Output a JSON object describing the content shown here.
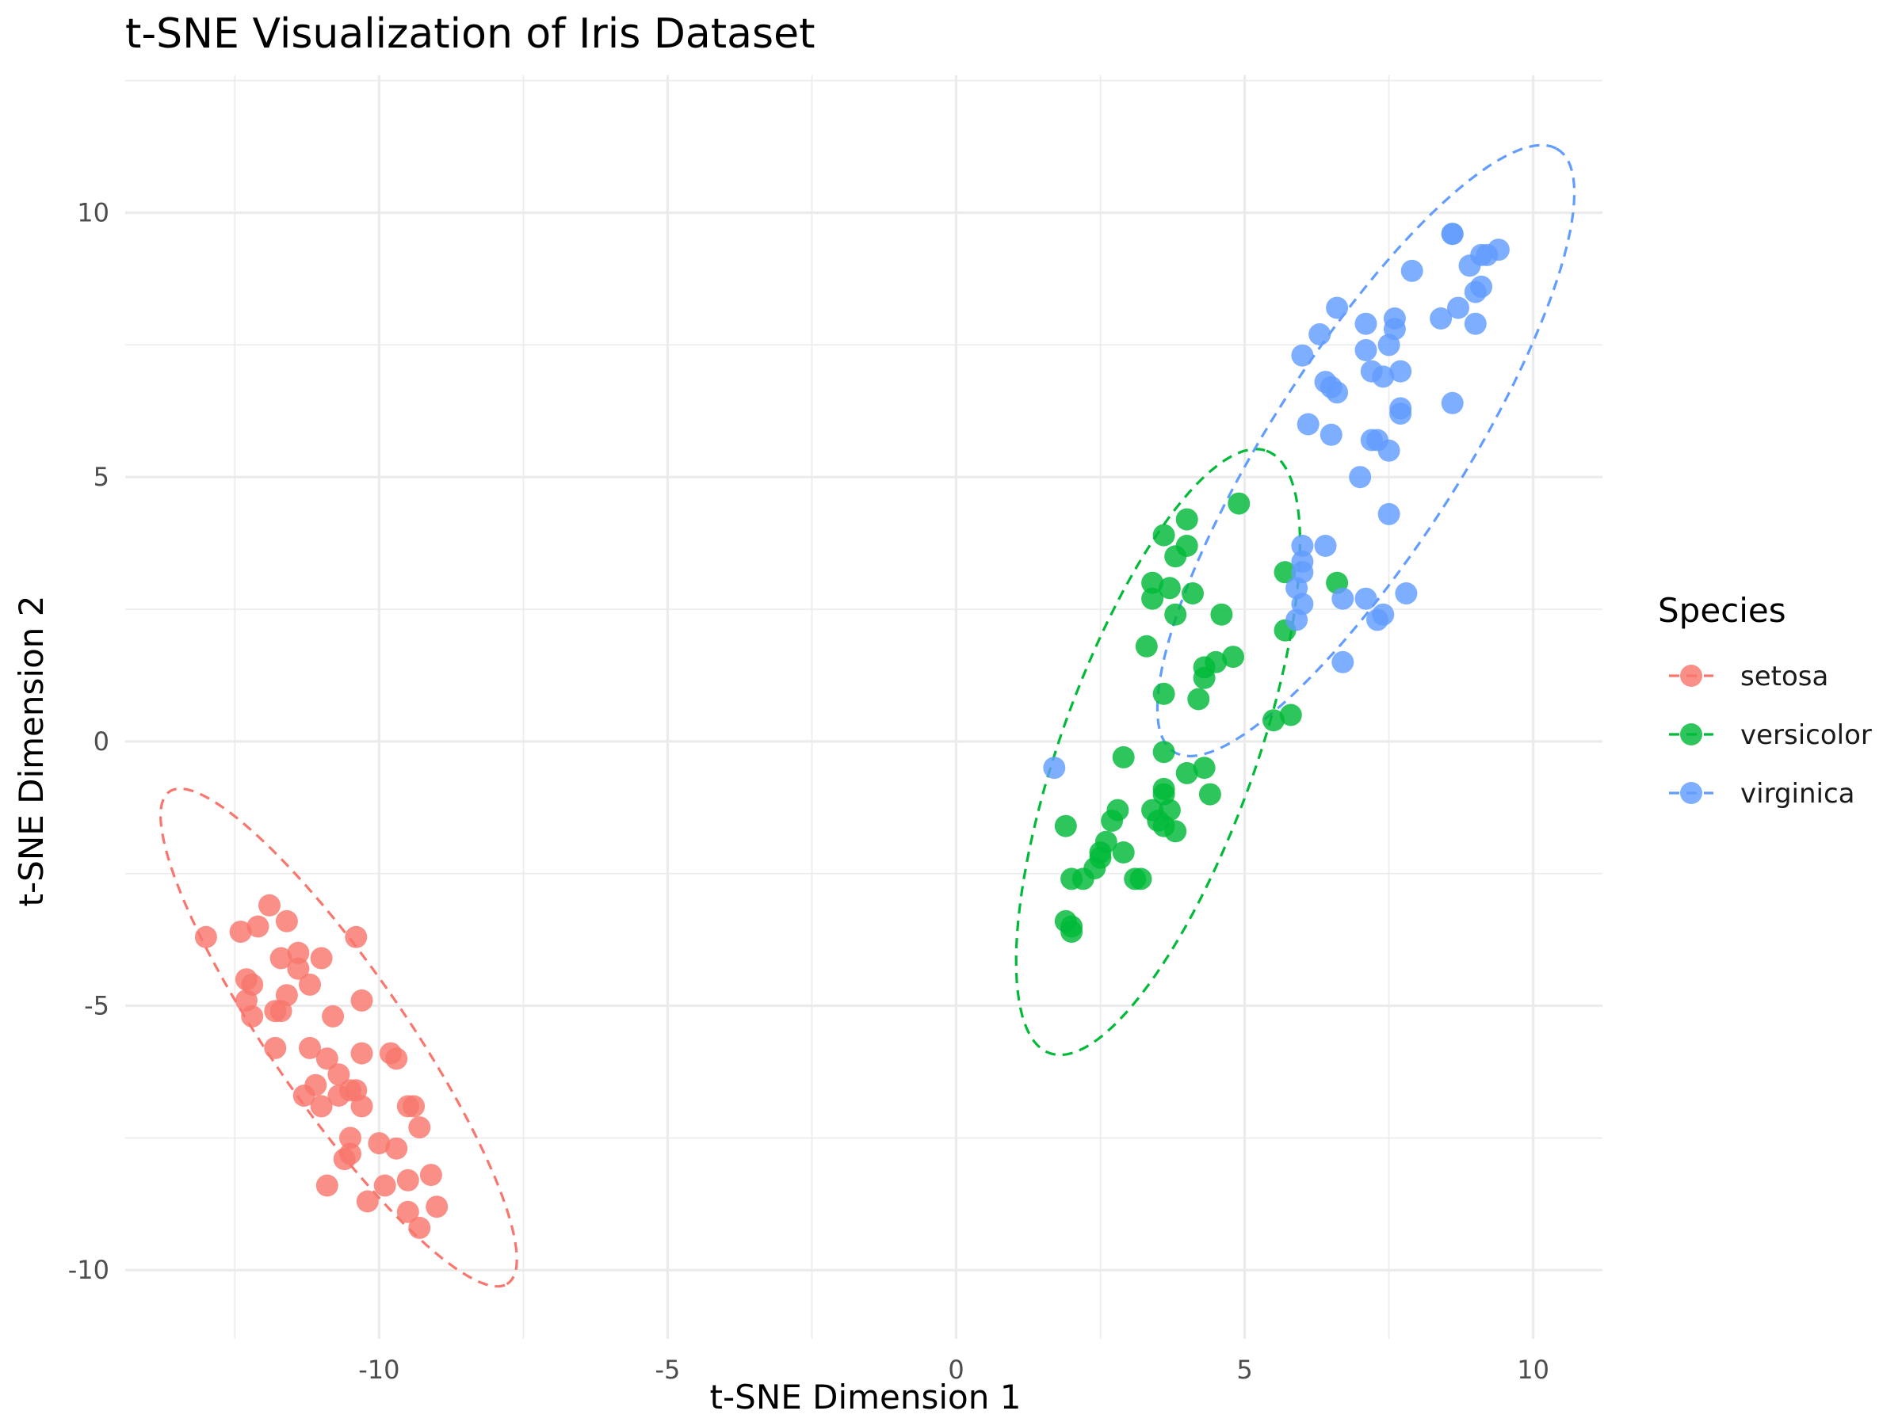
{
  "chart_data": {
    "type": "scatter",
    "title": "t-SNE Visualization of Iris Dataset",
    "xlabel": "t-SNE Dimension 1",
    "ylabel": "t-SNE Dimension 2",
    "xlim": [
      -14.4,
      11.2
    ],
    "ylim": [
      -11.3,
      12.6
    ],
    "x_ticks": [
      -10,
      -5,
      0,
      5,
      10
    ],
    "x_tick_labels": [
      "-10",
      "-5",
      "0",
      "5",
      "10"
    ],
    "y_ticks": [
      -10,
      -5,
      0,
      5,
      10
    ],
    "y_tick_labels": [
      "-10",
      "-5",
      "0",
      "5",
      "10"
    ],
    "grid": true,
    "legend": {
      "title": "Species",
      "position": "right",
      "entries": [
        "setosa",
        "versicolor",
        "virginica"
      ]
    },
    "series": [
      {
        "name": "setosa",
        "color": "#F8766D",
        "ellipse": {
          "center": [
            -10.7,
            -5.6
          ],
          "half_axes": [
            5.5,
            1.2
          ],
          "angle_deg": -58
        },
        "points": [
          [
            -13.0,
            -3.7
          ],
          [
            -12.4,
            -3.6
          ],
          [
            -12.1,
            -3.5
          ],
          [
            -11.9,
            -3.1
          ],
          [
            -11.6,
            -3.4
          ],
          [
            -10.4,
            -3.7
          ],
          [
            -12.3,
            -4.5
          ],
          [
            -12.2,
            -4.6
          ],
          [
            -11.7,
            -4.1
          ],
          [
            -11.4,
            -4.0
          ],
          [
            -11.4,
            -4.3
          ],
          [
            -11.0,
            -4.1
          ],
          [
            -12.3,
            -4.9
          ],
          [
            -11.6,
            -4.8
          ],
          [
            -11.2,
            -4.6
          ],
          [
            -12.2,
            -5.2
          ],
          [
            -11.8,
            -5.1
          ],
          [
            -11.7,
            -5.1
          ],
          [
            -10.8,
            -5.2
          ],
          [
            -10.3,
            -4.9
          ],
          [
            -11.8,
            -5.8
          ],
          [
            -11.2,
            -5.8
          ],
          [
            -10.9,
            -6.0
          ],
          [
            -10.3,
            -5.9
          ],
          [
            -9.8,
            -5.9
          ],
          [
            -9.7,
            -6.0
          ],
          [
            -11.1,
            -6.5
          ],
          [
            -10.7,
            -6.3
          ],
          [
            -11.3,
            -6.7
          ],
          [
            -11.0,
            -6.9
          ],
          [
            -10.7,
            -6.7
          ],
          [
            -10.5,
            -6.6
          ],
          [
            -10.4,
            -6.6
          ],
          [
            -10.3,
            -6.9
          ],
          [
            -9.5,
            -6.9
          ],
          [
            -9.4,
            -6.9
          ],
          [
            -9.3,
            -7.3
          ],
          [
            -10.5,
            -7.5
          ],
          [
            -10.0,
            -7.6
          ],
          [
            -9.7,
            -7.7
          ],
          [
            -10.5,
            -7.8
          ],
          [
            -10.6,
            -7.9
          ],
          [
            -10.9,
            -8.4
          ],
          [
            -9.9,
            -8.4
          ],
          [
            -9.5,
            -8.3
          ],
          [
            -9.1,
            -8.2
          ],
          [
            -10.2,
            -8.7
          ],
          [
            -9.5,
            -8.9
          ],
          [
            -9.0,
            -8.8
          ],
          [
            -9.3,
            -9.2
          ]
        ]
      },
      {
        "name": "versicolor",
        "color": "#00BA38",
        "ellipse": {
          "center": [
            3.5,
            -0.2
          ],
          "half_axes": [
            6.0,
            1.7
          ],
          "angle_deg": 72
        },
        "points": [
          [
            4.9,
            4.5
          ],
          [
            3.6,
            3.9
          ],
          [
            4.0,
            4.2
          ],
          [
            4.0,
            3.7
          ],
          [
            3.8,
            3.5
          ],
          [
            3.4,
            3.0
          ],
          [
            3.4,
            2.7
          ],
          [
            3.7,
            2.9
          ],
          [
            4.1,
            2.8
          ],
          [
            3.8,
            2.4
          ],
          [
            4.6,
            2.4
          ],
          [
            3.3,
            1.8
          ],
          [
            4.8,
            1.6
          ],
          [
            4.5,
            1.5
          ],
          [
            4.3,
            1.4
          ],
          [
            4.3,
            1.2
          ],
          [
            3.6,
            0.9
          ],
          [
            4.2,
            0.8
          ],
          [
            5.7,
            3.2
          ],
          [
            6.6,
            3.0
          ],
          [
            5.7,
            2.1
          ],
          [
            5.8,
            0.5
          ],
          [
            5.5,
            0.4
          ],
          [
            3.6,
            -0.2
          ],
          [
            2.9,
            -0.3
          ],
          [
            4.0,
            -0.6
          ],
          [
            4.3,
            -0.5
          ],
          [
            4.4,
            -1.0
          ],
          [
            3.6,
            -0.9
          ],
          [
            3.6,
            -1.0
          ],
          [
            2.8,
            -1.3
          ],
          [
            3.4,
            -1.3
          ],
          [
            3.7,
            -1.3
          ],
          [
            2.7,
            -1.5
          ],
          [
            3.6,
            -1.6
          ],
          [
            3.8,
            -1.7
          ],
          [
            1.9,
            -1.6
          ],
          [
            2.5,
            -2.1
          ],
          [
            2.9,
            -2.1
          ],
          [
            2.4,
            -2.4
          ],
          [
            2.0,
            -2.6
          ],
          [
            2.2,
            -2.6
          ],
          [
            3.1,
            -2.6
          ],
          [
            3.2,
            -2.6
          ],
          [
            1.9,
            -3.4
          ],
          [
            2.0,
            -3.5
          ],
          [
            2.0,
            -3.6
          ],
          [
            2.5,
            -2.2
          ],
          [
            2.6,
            -1.9
          ],
          [
            3.5,
            -1.5
          ]
        ]
      },
      {
        "name": "virginica",
        "color": "#619CFF",
        "ellipse": {
          "center": [
            7.1,
            5.5
          ],
          "half_axes": [
            6.6,
            1.7
          ],
          "angle_deg": 60
        },
        "points": [
          [
            8.6,
            9.6
          ],
          [
            8.6,
            9.6
          ],
          [
            9.4,
            9.3
          ],
          [
            9.1,
            9.2
          ],
          [
            9.2,
            9.2
          ],
          [
            7.9,
            8.9
          ],
          [
            8.9,
            9.0
          ],
          [
            9.1,
            8.6
          ],
          [
            9.0,
            8.5
          ],
          [
            6.6,
            8.2
          ],
          [
            8.7,
            8.2
          ],
          [
            8.4,
            8.0
          ],
          [
            7.6,
            8.0
          ],
          [
            7.1,
            7.9
          ],
          [
            9.0,
            7.9
          ],
          [
            7.6,
            7.8
          ],
          [
            6.3,
            7.7
          ],
          [
            7.5,
            7.5
          ],
          [
            7.1,
            7.4
          ],
          [
            6.0,
            7.3
          ],
          [
            7.2,
            7.0
          ],
          [
            7.7,
            7.0
          ],
          [
            7.4,
            6.9
          ],
          [
            6.4,
            6.8
          ],
          [
            6.5,
            6.7
          ],
          [
            6.6,
            6.6
          ],
          [
            8.6,
            6.4
          ],
          [
            7.7,
            6.3
          ],
          [
            7.7,
            6.2
          ],
          [
            6.1,
            6.0
          ],
          [
            6.5,
            5.8
          ],
          [
            7.3,
            5.7
          ],
          [
            7.2,
            5.7
          ],
          [
            7.5,
            5.5
          ],
          [
            7.0,
            5.0
          ],
          [
            7.5,
            4.3
          ],
          [
            6.0,
            3.7
          ],
          [
            6.4,
            3.7
          ],
          [
            6.0,
            3.4
          ],
          [
            5.9,
            2.9
          ],
          [
            6.0,
            2.6
          ],
          [
            7.1,
            2.7
          ],
          [
            7.8,
            2.8
          ],
          [
            6.7,
            2.7
          ],
          [
            5.9,
            2.3
          ],
          [
            7.4,
            2.4
          ],
          [
            7.3,
            2.3
          ],
          [
            6.7,
            1.5
          ],
          [
            1.7,
            -0.5
          ],
          [
            6.0,
            3.2
          ]
        ]
      }
    ]
  }
}
